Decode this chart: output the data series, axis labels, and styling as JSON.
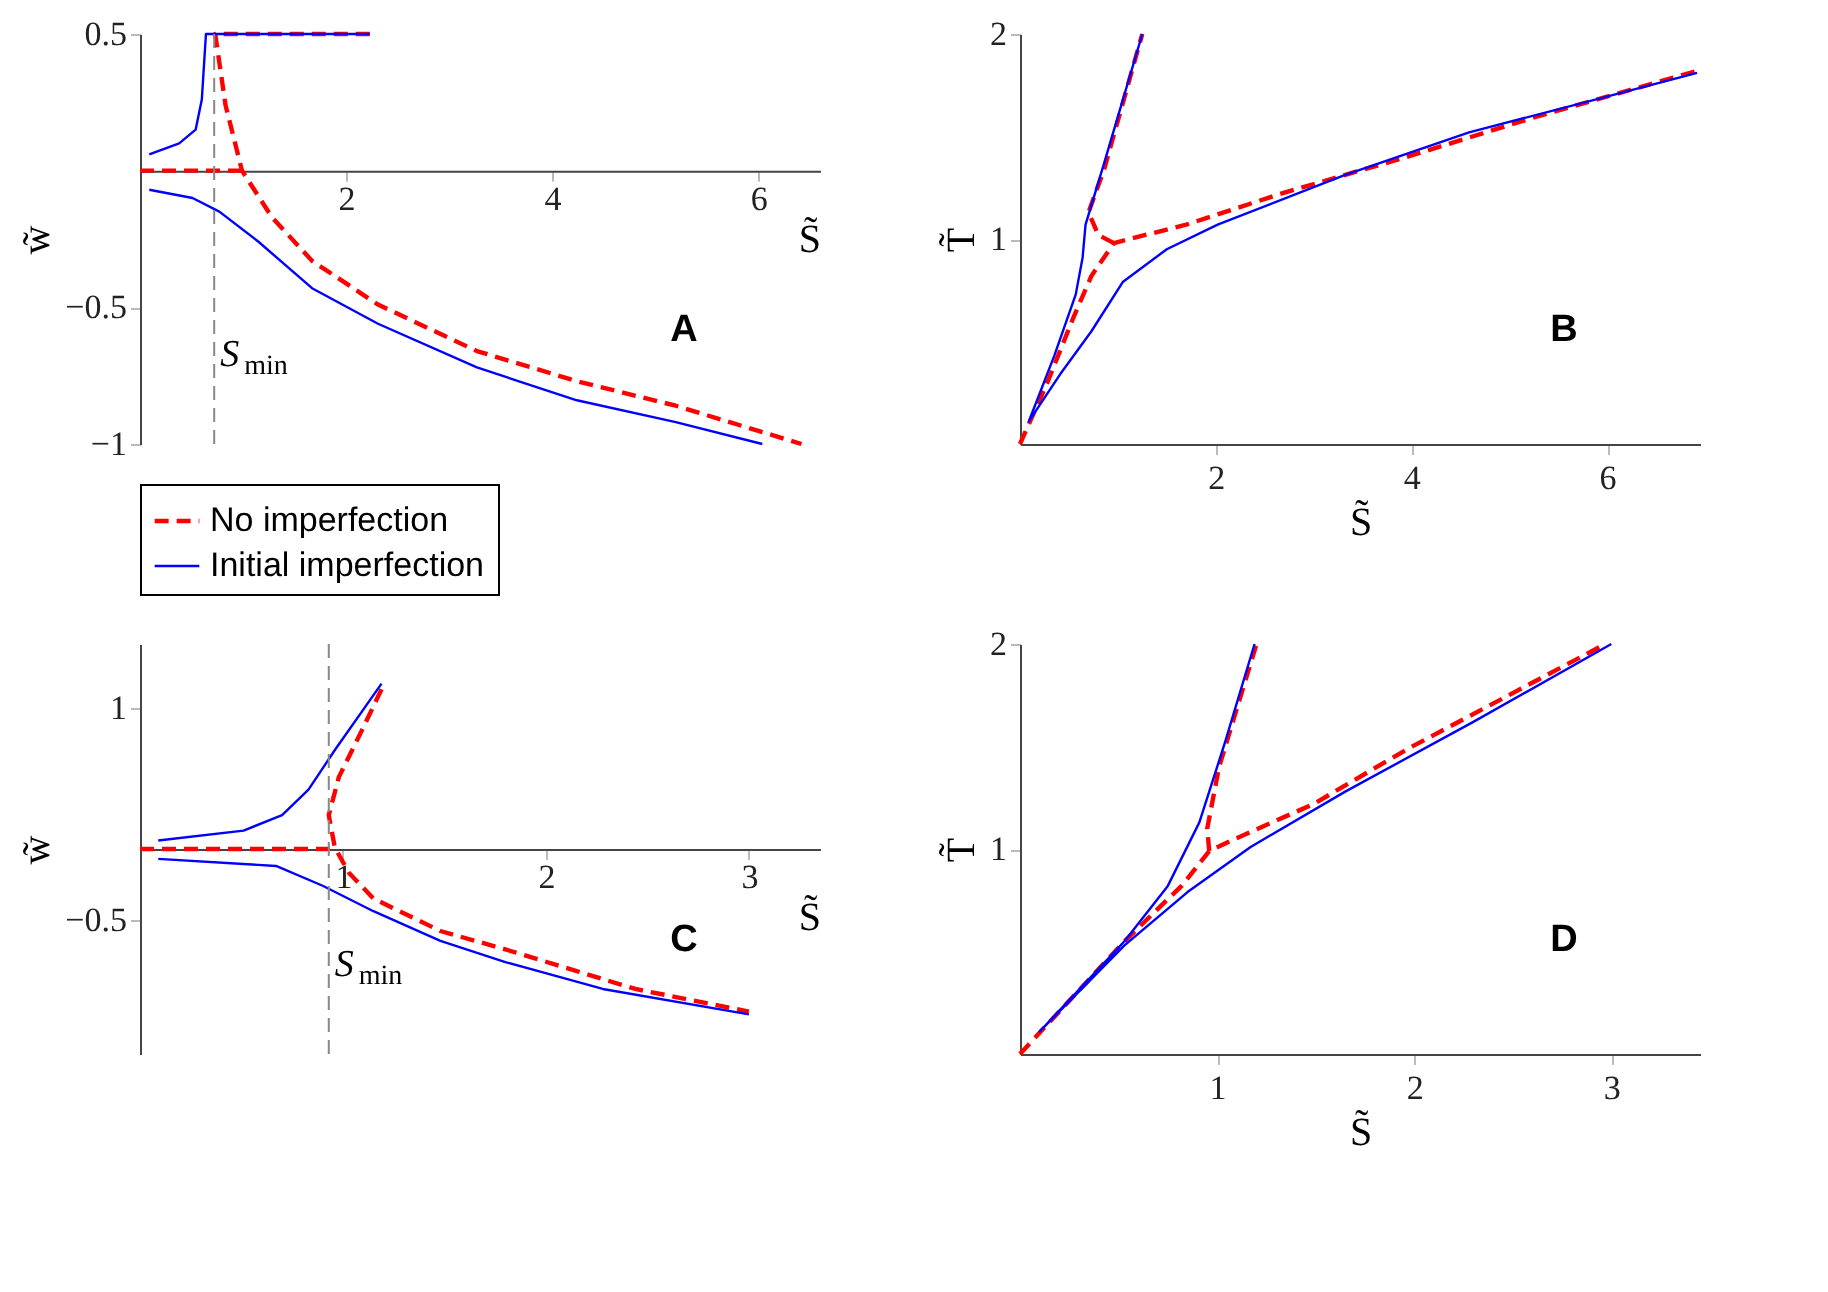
{
  "chart_data": [
    {
      "type": "line",
      "xlabel": "S̃",
      "ylabel": "w̃",
      "xlim": [
        0,
        6.6
      ],
      "ylim": [
        -1,
        0.5
      ],
      "xticks": [
        2,
        4,
        6
      ],
      "yticks": [
        0.5,
        -0.5,
        -1
      ],
      "legend": "bottom",
      "annotations": [
        "A"
      ],
      "ref_lines": [
        {
          "axis": "x",
          "value": 0.72,
          "label": "S$_{min}$",
          "color": "#888888",
          "line_style": "dashed"
        }
      ],
      "series": [
        {
          "name": "No imperfection",
          "color": "#ff0000",
          "line_style": "dashed",
          "x": [
            0,
            0.99,
            null,
            2.23,
            0.73,
            0.83,
            0.99,
            1.28,
            1.67,
            2.31,
            3.27,
            4.24,
            5.2,
            6.42
          ],
          "values": [
            0,
            0,
            null,
            0.5,
            0.5,
            0.24,
            0,
            -0.17,
            -0.33,
            -0.49,
            -0.66,
            -0.77,
            -0.86,
            -1.0
          ]
        },
        {
          "name": "Initial imperfection",
          "color": "#0000ff",
          "line_style": "solid",
          "x": [
            2.23,
            0.64,
            0.6,
            0.54,
            0.38,
            0.09,
            null,
            0.09,
            0.51,
            0.77,
            1.15,
            1.67,
            2.31,
            3.27,
            4.24,
            5.2,
            6.04
          ],
          "values": [
            0.5,
            0.5,
            0.26,
            0.15,
            0.1,
            0.06,
            null,
            -0.07,
            -0.1,
            -0.15,
            -0.26,
            -0.43,
            -0.56,
            -0.72,
            -0.84,
            -0.92,
            -1.0
          ]
        }
      ]
    },
    {
      "type": "line",
      "xlabel": "S̃",
      "ylabel": "T̃",
      "xlim": [
        0,
        6.95
      ],
      "ylim": [
        0,
        2
      ],
      "xticks": [
        2,
        4,
        6
      ],
      "yticks": [
        1,
        2
      ],
      "annotations": [
        "B"
      ],
      "series": [
        {
          "color": "#ff0000",
          "line_style": "dashed",
          "x": [
            0,
            0.28,
            0.54,
            0.73,
            0.96,
            1.12,
            1.7,
            2.66,
            3.95,
            5.23,
            6.92,
            null,
            0.96,
            0.8,
            0.7,
            0.86,
            1.25
          ],
          "values": [
            0,
            0.3,
            0.61,
            0.82,
            0.98,
            1.0,
            1.07,
            1.22,
            1.4,
            1.59,
            1.82,
            null,
            0.98,
            1.02,
            1.13,
            1.34,
            2.0
          ]
        },
        {
          "color": "#0000ff",
          "line_style": "solid",
          "x": [
            1.25,
            0.86,
            0.67,
            0.64,
            0.57,
            0.35,
            0.09,
            0.41,
            0.73,
            1.05,
            1.5,
            2.02,
            3.31,
            4.59,
            5.88,
            6.92
          ],
          "values": [
            2.0,
            1.37,
            1.07,
            0.91,
            0.73,
            0.43,
            0.11,
            0.34,
            0.55,
            0.79,
            0.95,
            1.07,
            1.31,
            1.52,
            1.68,
            1.81
          ]
        }
      ]
    },
    {
      "type": "line",
      "xlabel": "S̃",
      "ylabel": "w̃",
      "xlim": [
        0,
        3.35
      ],
      "ylim": [
        -1.45,
        1.45
      ],
      "xticks": [
        1,
        2,
        3
      ],
      "yticks": [
        1,
        -0.5
      ],
      "annotations": [
        "C"
      ],
      "ref_lines": [
        {
          "axis": "x",
          "value": 0.93,
          "label": "S$_{min}$",
          "color": "#888888",
          "line_style": "dashed"
        }
      ],
      "series": [
        {
          "color": "#ff0000",
          "line_style": "dashed",
          "x": [
            0,
            0.96,
            null,
            1.19,
            1.09,
            0.98,
            0.93,
            0.96,
            1.03,
            1.15,
            1.48,
            1.8,
            2.12,
            2.44,
            3.0
          ],
          "values": [
            0,
            0,
            null,
            1.13,
            0.83,
            0.51,
            0.24,
            0.01,
            -0.17,
            -0.35,
            -0.58,
            -0.71,
            -0.85,
            -0.99,
            -1.15
          ]
        },
        {
          "color": "#0000ff",
          "line_style": "solid",
          "x": [
            0.09,
            0.51,
            0.7,
            0.83,
            0.96,
            1.19,
            null,
            0.09,
            0.67,
            0.9,
            1.15,
            1.48,
            1.8,
            2.28,
            3.0
          ],
          "values": [
            0.06,
            0.13,
            0.24,
            0.42,
            0.7,
            1.17,
            null,
            -0.07,
            -0.12,
            -0.26,
            -0.44,
            -0.65,
            -0.8,
            -0.99,
            -1.17
          ]
        }
      ]
    },
    {
      "type": "line",
      "xlabel": "S̃",
      "ylabel": "T̃",
      "xlim": [
        0,
        3.45
      ],
      "ylim": [
        0,
        2
      ],
      "xticks": [
        1,
        2,
        3
      ],
      "yticks": [
        1,
        2
      ],
      "annotations": [
        "D"
      ],
      "series": [
        {
          "color": "#ff0000",
          "line_style": "dashed",
          "x": [
            0,
            0.53,
            0.82,
            0.96,
            1.07,
            1.49,
            1.97,
            2.46,
            2.97,
            null,
            0.96,
            0.95,
            1.01,
            1.2
          ],
          "values": [
            0,
            0.55,
            0.82,
            0.99,
            1.04,
            1.22,
            1.49,
            1.74,
            2.0,
            null,
            0.99,
            1.1,
            1.4,
            2.0
          ]
        },
        {
          "color": "#0000ff",
          "line_style": "solid",
          "x": [
            1.19,
            1.04,
            0.91,
            0.75,
            0.53,
            0.1,
            0.53,
            0.85,
            1.17,
            1.65,
            2.3,
            3.0
          ],
          "values": [
            2.0,
            1.52,
            1.13,
            0.82,
            0.55,
            0.11,
            0.53,
            0.79,
            1.01,
            1.28,
            1.62,
            2.0
          ]
        }
      ]
    }
  ]
}
